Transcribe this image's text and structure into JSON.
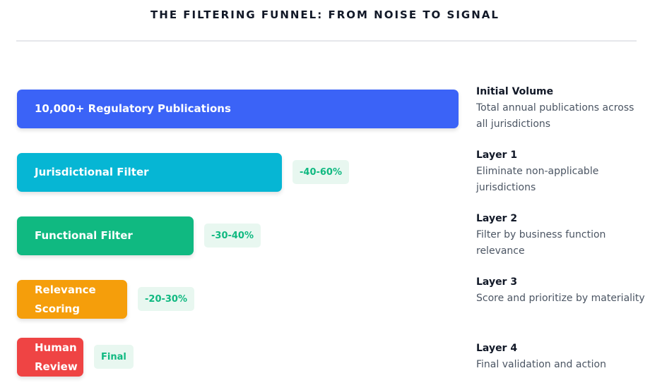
{
  "title": "THE FILTERING FUNNEL: FROM NOISE TO SIGNAL",
  "colors": {
    "stage1": "#3b63f7",
    "stage2": "#06b6d4",
    "stage3": "#10b981",
    "stage4": "#f59e0b",
    "stage5": "#ef4444",
    "badge_bg": "#e8f7f0",
    "badge_text": "#10b981"
  },
  "stages": [
    {
      "label": "10,000+ Regulatory Publications",
      "badge": "",
      "desc_title": "Initial Volume",
      "desc_text": "Total annual publications across all jurisdictions"
    },
    {
      "label": "Jurisdictional Filter",
      "badge": "-40-60%",
      "desc_title": "Layer 1",
      "desc_text": "Eliminate non-applicable jurisdictions"
    },
    {
      "label": "Functional Filter",
      "badge": "-30-40%",
      "desc_title": "Layer 2",
      "desc_text": "Filter by business function relevance"
    },
    {
      "label": "Relevance Scoring",
      "badge": "-20-30%",
      "desc_title": "Layer 3",
      "desc_text": "Score and prioritize by materiality"
    },
    {
      "label": "Human Review",
      "badge": "Final",
      "desc_title": "Layer 4",
      "desc_text": "Final validation and action"
    }
  ]
}
